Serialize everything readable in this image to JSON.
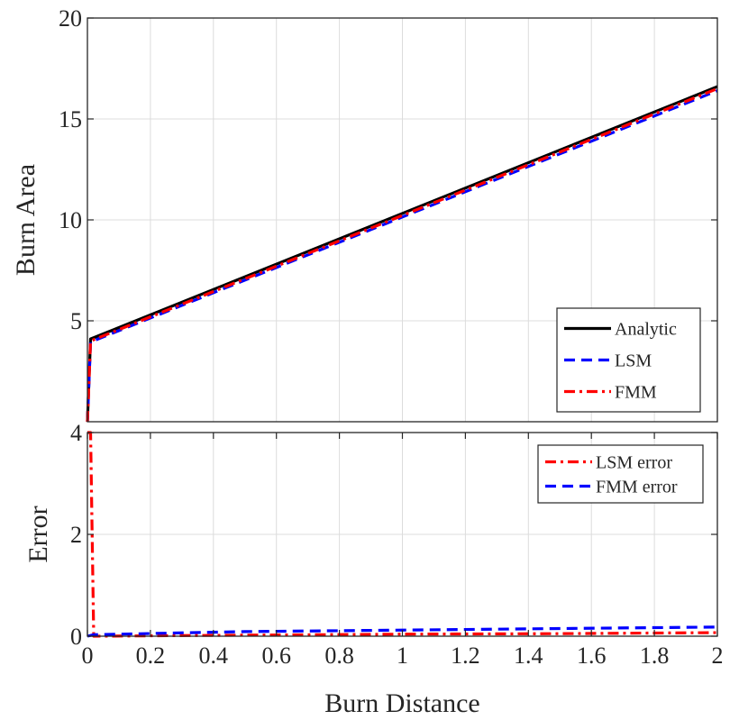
{
  "chart_data": [
    {
      "type": "line",
      "xlabel": "",
      "ylabel": "Burn Area",
      "xlim": [
        0,
        2
      ],
      "ylim": [
        0,
        20
      ],
      "y_ticks": [
        5,
        10,
        15,
        20
      ],
      "grid": true,
      "legend_position": "bottom-right",
      "series": [
        {
          "name": "Analytic",
          "color": "#000000",
          "style": "solid",
          "x": [
            0,
            0.01,
            2
          ],
          "y": [
            0,
            4.1,
            16.6
          ]
        },
        {
          "name": "LSM",
          "color": "#0000ff",
          "style": "dashed",
          "x": [
            0,
            0.01,
            2
          ],
          "y": [
            0,
            3.95,
            16.4
          ]
        },
        {
          "name": "FMM",
          "color": "#ff0000",
          "style": "dashdot",
          "x": [
            0,
            0.01,
            2
          ],
          "y": [
            0,
            4.0,
            16.5
          ]
        }
      ]
    },
    {
      "type": "line",
      "xlabel": "Burn Distance",
      "ylabel": "Error",
      "xlim": [
        0,
        2
      ],
      "ylim": [
        0,
        4
      ],
      "x_ticks": [
        "0",
        "0.2",
        "0.4",
        "0.6",
        "0.8",
        "1",
        "1.2",
        "1.4",
        "1.6",
        "1.8",
        "2"
      ],
      "y_ticks": [
        0,
        2,
        4
      ],
      "grid": true,
      "legend_position": "top-right",
      "series": [
        {
          "name": "LSM error",
          "color": "#ff0000",
          "style": "dashdot",
          "x": [
            0,
            0.01,
            0.02,
            0.5,
            1,
            1.5,
            2
          ],
          "y": [
            4.0,
            4.0,
            0.0,
            0.02,
            0.04,
            0.05,
            0.07
          ]
        },
        {
          "name": "FMM error",
          "color": "#0000ff",
          "style": "dashed",
          "x": [
            0,
            0.02,
            0.5,
            1,
            1.5,
            2
          ],
          "y": [
            0.0,
            0.03,
            0.09,
            0.12,
            0.15,
            0.18
          ]
        }
      ]
    }
  ]
}
